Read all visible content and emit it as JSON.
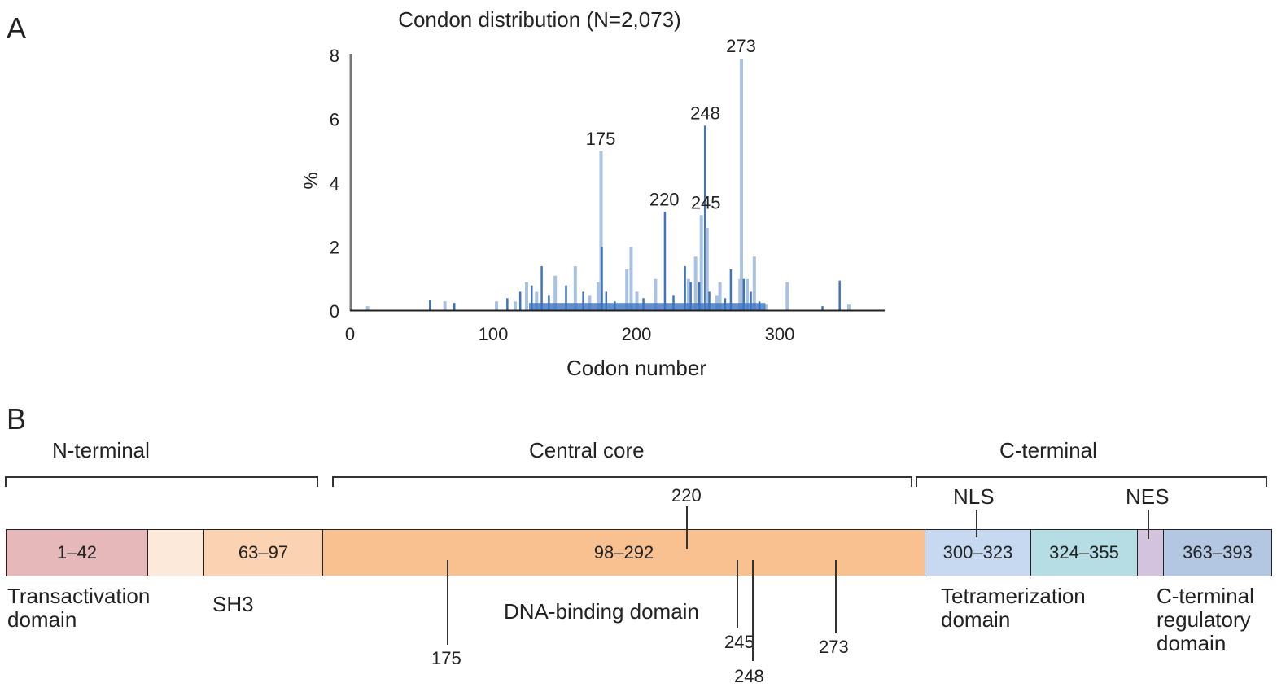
{
  "panel_a_label": "A",
  "panel_b_label": "B",
  "chart_data": {
    "type": "bar",
    "title": "Condon distribution (N=2,073)",
    "xlabel": "Codon number",
    "ylabel": "%",
    "xlim": [
      0,
      393
    ],
    "ylim": [
      0,
      8
    ],
    "xticks": [
      "0",
      "100",
      "200",
      "300"
    ],
    "yticks": [
      "0",
      "2",
      "4",
      "6",
      "8"
    ],
    "grid": false,
    "colors": {
      "bar": "#3f73bf",
      "bar_light": "#a9c1e3"
    },
    "annotations": [
      "175",
      "220",
      "245",
      "248",
      "273"
    ],
    "points": [
      {
        "codon": 175,
        "value": 5.0
      },
      {
        "codon": 220,
        "value": 3.1
      },
      {
        "codon": 245,
        "value": 3.0
      },
      {
        "codon": 248,
        "value": 5.8
      },
      {
        "codon": 273,
        "value": 7.9
      },
      {
        "codon": 176,
        "value": 2.0
      },
      {
        "codon": 196,
        "value": 2.0
      },
      {
        "codon": 134,
        "value": 1.4
      },
      {
        "codon": 143,
        "value": 1.1
      },
      {
        "codon": 151,
        "value": 0.8
      },
      {
        "codon": 157,
        "value": 1.4
      },
      {
        "codon": 163,
        "value": 0.6
      },
      {
        "codon": 173,
        "value": 0.9
      },
      {
        "codon": 179,
        "value": 0.6
      },
      {
        "codon": 193,
        "value": 1.3
      },
      {
        "codon": 205,
        "value": 0.4
      },
      {
        "codon": 213,
        "value": 1.0
      },
      {
        "codon": 234,
        "value": 1.4
      },
      {
        "codon": 236,
        "value": 1.0
      },
      {
        "codon": 238,
        "value": 0.9
      },
      {
        "codon": 241,
        "value": 1.7
      },
      {
        "codon": 244,
        "value": 0.9
      },
      {
        "codon": 249,
        "value": 2.6
      },
      {
        "codon": 251,
        "value": 0.6
      },
      {
        "codon": 258,
        "value": 0.9
      },
      {
        "codon": 266,
        "value": 1.3
      },
      {
        "codon": 272,
        "value": 1.0
      },
      {
        "codon": 275,
        "value": 1.0
      },
      {
        "codon": 277,
        "value": 1.0
      },
      {
        "codon": 280,
        "value": 0.6
      },
      {
        "codon": 282,
        "value": 1.7
      },
      {
        "codon": 286,
        "value": 0.3
      },
      {
        "codon": 305,
        "value": 0.9
      },
      {
        "codon": 342,
        "value": 0.95
      },
      {
        "codon": 12,
        "value": 0.15
      },
      {
        "codon": 56,
        "value": 0.35
      },
      {
        "codon": 66,
        "value": 0.3
      },
      {
        "codon": 73,
        "value": 0.25
      },
      {
        "codon": 102,
        "value": 0.3
      },
      {
        "codon": 110,
        "value": 0.4
      },
      {
        "codon": 115,
        "value": 0.3
      },
      {
        "codon": 119,
        "value": 0.6
      },
      {
        "codon": 123,
        "value": 0.9
      },
      {
        "codon": 127,
        "value": 0.8
      },
      {
        "codon": 130,
        "value": 0.6
      },
      {
        "codon": 139,
        "value": 0.5
      },
      {
        "codon": 167,
        "value": 0.5
      },
      {
        "codon": 185,
        "value": 0.3
      },
      {
        "codon": 200,
        "value": 0.6
      },
      {
        "codon": 226,
        "value": 0.5
      },
      {
        "codon": 256,
        "value": 0.5
      },
      {
        "codon": 262,
        "value": 0.4
      },
      {
        "codon": 290,
        "value": 0.2
      },
      {
        "codon": 330,
        "value": 0.15
      },
      {
        "codon": 348,
        "value": 0.2
      }
    ]
  },
  "domains": {
    "groups": [
      "N-terminal",
      "Central core",
      "C-terminal"
    ],
    "segments": [
      {
        "label": "1–42",
        "color": "#e6b8b9"
      },
      {
        "label": "",
        "color": "#fde9da"
      },
      {
        "label": "63–97",
        "color": "#fbd3b2"
      },
      {
        "label": "98–292",
        "color": "#f9c190"
      },
      {
        "label": "300–323",
        "color": "#c7d9f0"
      },
      {
        "label": "324–355",
        "color": "#b5dde3"
      },
      {
        "label": "",
        "color": "#d3c3de"
      },
      {
        "label": "363–393",
        "color": "#b3c7e2"
      }
    ],
    "names": {
      "transactivation": "Transactivation domain",
      "sh3": "SH3",
      "dna_binding": "DNA-binding domain",
      "tetramerization": "Tetramerization domain",
      "c_terminal_regulatory": "C-terminal regulatory domain"
    },
    "signals": {
      "nls": "NLS",
      "nes": "NES"
    },
    "hotspots": [
      "175",
      "220",
      "245",
      "248",
      "273"
    ]
  }
}
